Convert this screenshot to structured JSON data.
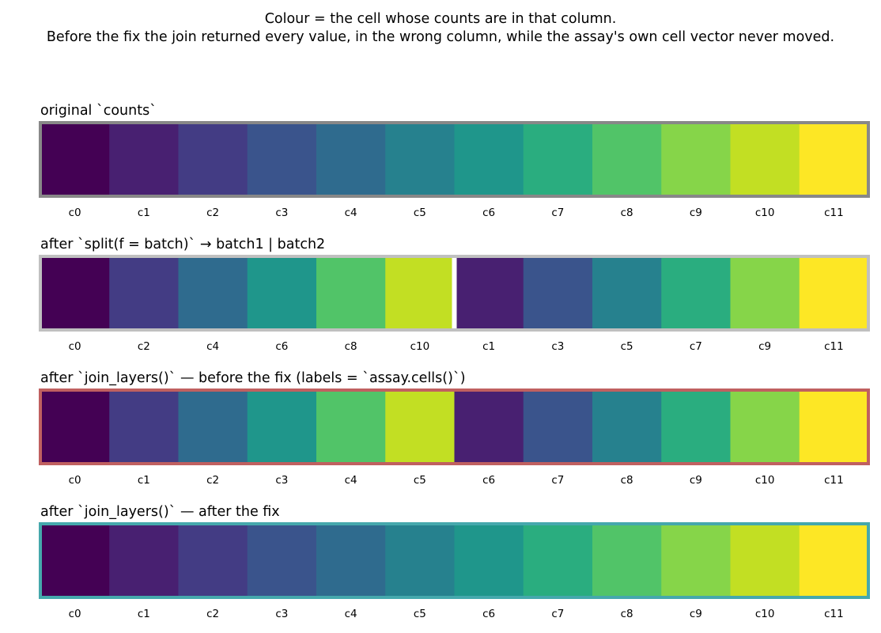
{
  "header": {
    "line1": "Colour = the cell whose counts are in that column.",
    "line2": "Before the fix the join returned every value, in the wrong column, while the assay's own cell vector never moved."
  },
  "colors": {
    "c0": "#440154",
    "c1": "#482071",
    "c2": "#433c84",
    "c3": "#3a548c",
    "c4": "#2f6b8e",
    "c5": "#26818e",
    "c6": "#1f968b",
    "c7": "#2aad7f",
    "c8": "#51c468",
    "c9": "#86d549",
    "c10": "#c2df23",
    "c11": "#fde725"
  },
  "panels": [
    {
      "title": "original `counts`",
      "border_color": "#888888",
      "cells": [
        "c0",
        "c1",
        "c2",
        "c3",
        "c4",
        "c5",
        "c6",
        "c7",
        "c8",
        "c9",
        "c10",
        "c11"
      ],
      "tick_labels": [
        "c0",
        "c1",
        "c2",
        "c3",
        "c4",
        "c5",
        "c6",
        "c7",
        "c8",
        "c9",
        "c10",
        "c11"
      ],
      "gap_after": null
    },
    {
      "title": "after `split(f = batch)` → batch1 | batch2",
      "border_color": "#c0c0c0",
      "cells": [
        "c0",
        "c2",
        "c4",
        "c6",
        "c8",
        "c10",
        "c1",
        "c3",
        "c5",
        "c7",
        "c9",
        "c11"
      ],
      "tick_labels": [
        "c0",
        "c2",
        "c4",
        "c6",
        "c8",
        "c10",
        "c1",
        "c3",
        "c5",
        "c7",
        "c9",
        "c11"
      ],
      "gap_after": 6
    },
    {
      "title": "after `join_layers()` — before the fix  (labels = `assay.cells()`)",
      "border_color": "#c06060",
      "cells": [
        "c0",
        "c2",
        "c4",
        "c6",
        "c8",
        "c10",
        "c1",
        "c3",
        "c5",
        "c7",
        "c9",
        "c11"
      ],
      "tick_labels": [
        "c0",
        "c1",
        "c2",
        "c3",
        "c4",
        "c5",
        "c6",
        "c7",
        "c8",
        "c9",
        "c10",
        "c11"
      ],
      "gap_after": null
    },
    {
      "title": "after `join_layers()` — after the fix",
      "border_color": "#45a8ac",
      "cells": [
        "c0",
        "c1",
        "c2",
        "c3",
        "c4",
        "c5",
        "c6",
        "c7",
        "c8",
        "c9",
        "c10",
        "c11"
      ],
      "tick_labels": [
        "c0",
        "c1",
        "c2",
        "c3",
        "c4",
        "c5",
        "c6",
        "c7",
        "c8",
        "c9",
        "c10",
        "c11"
      ],
      "gap_after": null
    }
  ],
  "chart_data": {
    "type": "heatmap",
    "categories": [
      "c0",
      "c1",
      "c2",
      "c3",
      "c4",
      "c5",
      "c6",
      "c7",
      "c8",
      "c9",
      "c10",
      "c11"
    ],
    "rows": [
      {
        "name": "original `counts`",
        "cell_colors_by_column": [
          "c0",
          "c1",
          "c2",
          "c3",
          "c4",
          "c5",
          "c6",
          "c7",
          "c8",
          "c9",
          "c10",
          "c11"
        ],
        "column_labels": [
          "c0",
          "c1",
          "c2",
          "c3",
          "c4",
          "c5",
          "c6",
          "c7",
          "c8",
          "c9",
          "c10",
          "c11"
        ]
      },
      {
        "name": "after `split(f = batch)` → batch1 | batch2",
        "cell_colors_by_column": [
          "c0",
          "c2",
          "c4",
          "c6",
          "c8",
          "c10",
          "c1",
          "c3",
          "c5",
          "c7",
          "c9",
          "c11"
        ],
        "column_labels": [
          "c0",
          "c2",
          "c4",
          "c6",
          "c8",
          "c10",
          "c1",
          "c3",
          "c5",
          "c7",
          "c9",
          "c11"
        ]
      },
      {
        "name": "after `join_layers()` — before the fix  (labels = `assay.cells()`)",
        "cell_colors_by_column": [
          "c0",
          "c2",
          "c4",
          "c6",
          "c8",
          "c10",
          "c1",
          "c3",
          "c5",
          "c7",
          "c9",
          "c11"
        ],
        "column_labels": [
          "c0",
          "c1",
          "c2",
          "c3",
          "c4",
          "c5",
          "c6",
          "c7",
          "c8",
          "c9",
          "c10",
          "c11"
        ]
      },
      {
        "name": "after `join_layers()` — after the fix",
        "cell_colors_by_column": [
          "c0",
          "c1",
          "c2",
          "c3",
          "c4",
          "c5",
          "c6",
          "c7",
          "c8",
          "c9",
          "c10",
          "c11"
        ],
        "column_labels": [
          "c0",
          "c1",
          "c2",
          "c3",
          "c4",
          "c5",
          "c6",
          "c7",
          "c8",
          "c9",
          "c10",
          "c11"
        ]
      }
    ],
    "colormap": "viridis",
    "title": "Colour = the cell whose counts are in that column.\nBefore the fix the join returned every value, in the wrong column, while the assay's own cell vector never moved.",
    "grid": false,
    "legend": "none"
  }
}
